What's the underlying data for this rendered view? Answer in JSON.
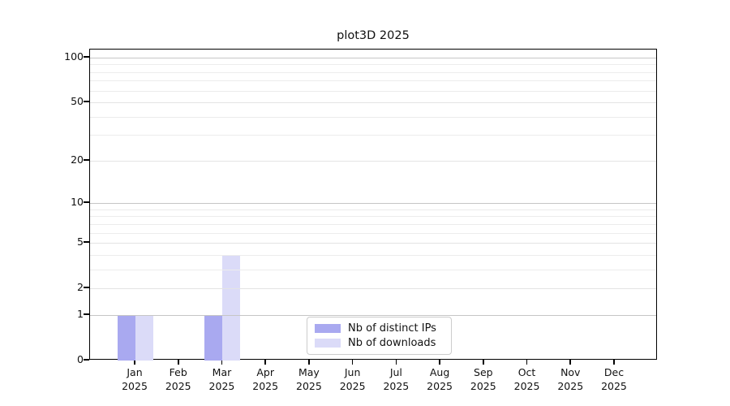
{
  "title": "plot3D 2025",
  "chart_data": {
    "type": "bar",
    "title": "plot3D 2025",
    "categories": [
      "Jan",
      "Feb",
      "Mar",
      "Apr",
      "May",
      "Jun",
      "Jul",
      "Aug",
      "Sep",
      "Oct",
      "Nov",
      "Dec"
    ],
    "year": "2025",
    "series": [
      {
        "name": "Nb of distinct IPs",
        "color": "#a9a9f0",
        "values": [
          1,
          0,
          1,
          0,
          0,
          0,
          0,
          0,
          0,
          0,
          0,
          0
        ]
      },
      {
        "name": "Nb of downloads",
        "color": "#dbdbf8",
        "values": [
          1,
          0,
          4,
          0,
          0,
          0,
          0,
          0,
          0,
          0,
          0,
          0
        ]
      }
    ],
    "yscale": "log1p",
    "ylim": [
      0,
      113
    ],
    "ytick_values": [
      0,
      1,
      2,
      5,
      10,
      20,
      50,
      100
    ],
    "ytick_labels": [
      "0",
      "1",
      "2",
      "5",
      "10",
      "20",
      "50",
      "100"
    ],
    "minor_grid_values": [
      3,
      4,
      6,
      7,
      8,
      9,
      30,
      40,
      60,
      70,
      80,
      90
    ],
    "decade_grid_values": [
      1,
      10,
      100
    ],
    "grid": true,
    "legend_position": "lower center",
    "xlabel": "",
    "ylabel": ""
  },
  "colors": {
    "decade_grid": "#c6c6c6",
    "major_grid": "#e4e4e4",
    "minor_grid": "#ececec",
    "spine": "#000000",
    "background": "#ffffff"
  },
  "legend": {
    "items": [
      {
        "label": "Nb of distinct IPs",
        "color": "#a9a9f0"
      },
      {
        "label": "Nb of downloads",
        "color": "#dbdbf8"
      }
    ]
  }
}
